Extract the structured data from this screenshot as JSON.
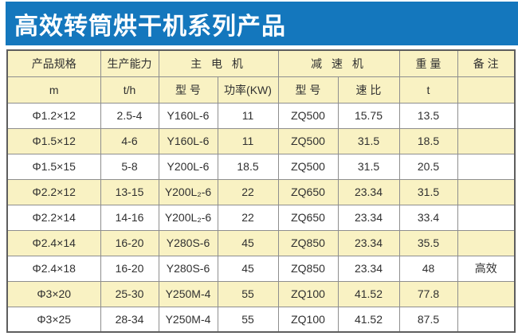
{
  "title": "高效转筒烘干机系列产品",
  "colors": {
    "title_bg": "#1477BD",
    "title_text": "#FFFFFF",
    "header_bg": "#F9F2C3",
    "row_alt_bg": "#F9F2C3",
    "row_bg": "#FFFFFF",
    "border_inner": "#8E8E8E",
    "border_outer": "#5E5E5E",
    "text": "#303030"
  },
  "table": {
    "header_groups": [
      {
        "label": "产品规格",
        "colspan": 1
      },
      {
        "label": "生产能力",
        "colspan": 1
      },
      {
        "label": "主 电 机",
        "colspan": 2
      },
      {
        "label": "减 速 机",
        "colspan": 2
      },
      {
        "label": "重 量",
        "colspan": 1
      },
      {
        "label": "备 注",
        "colspan": 1
      }
    ],
    "subheaders": [
      "m",
      "t/h",
      "型 号",
      "功率(KW)",
      "型 号",
      "速 比",
      "t",
      ""
    ],
    "rows": [
      [
        "Φ1.2×12",
        "2.5-4",
        "Y160L-6",
        "11",
        "ZQ500",
        "15.75",
        "13.5",
        ""
      ],
      [
        "Φ1.5×12",
        "4-6",
        "Y160L-6",
        "11",
        "ZQ500",
        "31.5",
        "18.5",
        ""
      ],
      [
        "Φ1.5×15",
        "5-8",
        "Y200L-6",
        "18.5",
        "ZQ500",
        "31.5",
        "20.5",
        ""
      ],
      [
        "Φ2.2×12",
        "13-15",
        "Y200L₂-6",
        "22",
        "ZQ650",
        "23.34",
        "31.5",
        ""
      ],
      [
        "Φ2.2×14",
        "14-16",
        "Y200L₂-6",
        "22",
        "ZQ650",
        "23.34",
        "33.4",
        ""
      ],
      [
        "Φ2.4×14",
        "16-20",
        "Y280S-6",
        "45",
        "ZQ850",
        "23.34",
        "35.5",
        ""
      ],
      [
        "Φ2.4×18",
        "16-20",
        "Y280S-6",
        "45",
        "ZQ850",
        "23.34",
        "48",
        "高效"
      ],
      [
        "Φ3×20",
        "25-30",
        "Y250M-4",
        "55",
        "ZQ100",
        "41.52",
        "77.8",
        ""
      ],
      [
        "Φ3×25",
        "28-34",
        "Y250M-4",
        "55",
        "ZQ100",
        "41.52",
        "87.5",
        ""
      ]
    ]
  }
}
